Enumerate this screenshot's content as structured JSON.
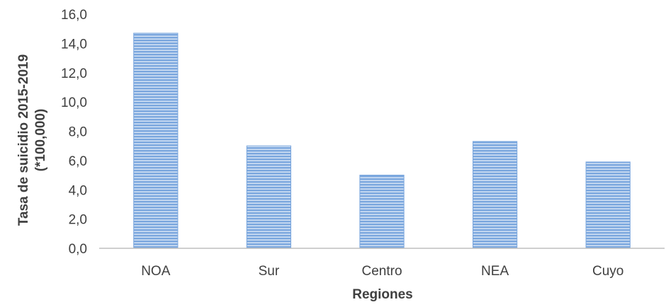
{
  "chart_data": {
    "type": "bar",
    "categories": [
      "NOA",
      "Sur",
      "Centro",
      "NEA",
      "Cuyo"
    ],
    "values": [
      14.7,
      7.0,
      5.0,
      7.3,
      5.9
    ],
    "title": "",
    "xlabel": "Regiones",
    "ylabel_lines": [
      "Tasa de suicidio 2015-2019",
      "(*100,000)"
    ],
    "ylim": [
      0,
      16
    ],
    "yticks": [
      "0,0",
      "2,0",
      "4,0",
      "6,0",
      "8,0",
      "10,0",
      "12,0",
      "14,0",
      "16,0"
    ],
    "grid": false,
    "legend": "none",
    "colors": {
      "bar_fill": "#7ba7de",
      "bar_stripe": "#ffffff",
      "axis": "#bfbfbf",
      "text": "#404040"
    }
  }
}
